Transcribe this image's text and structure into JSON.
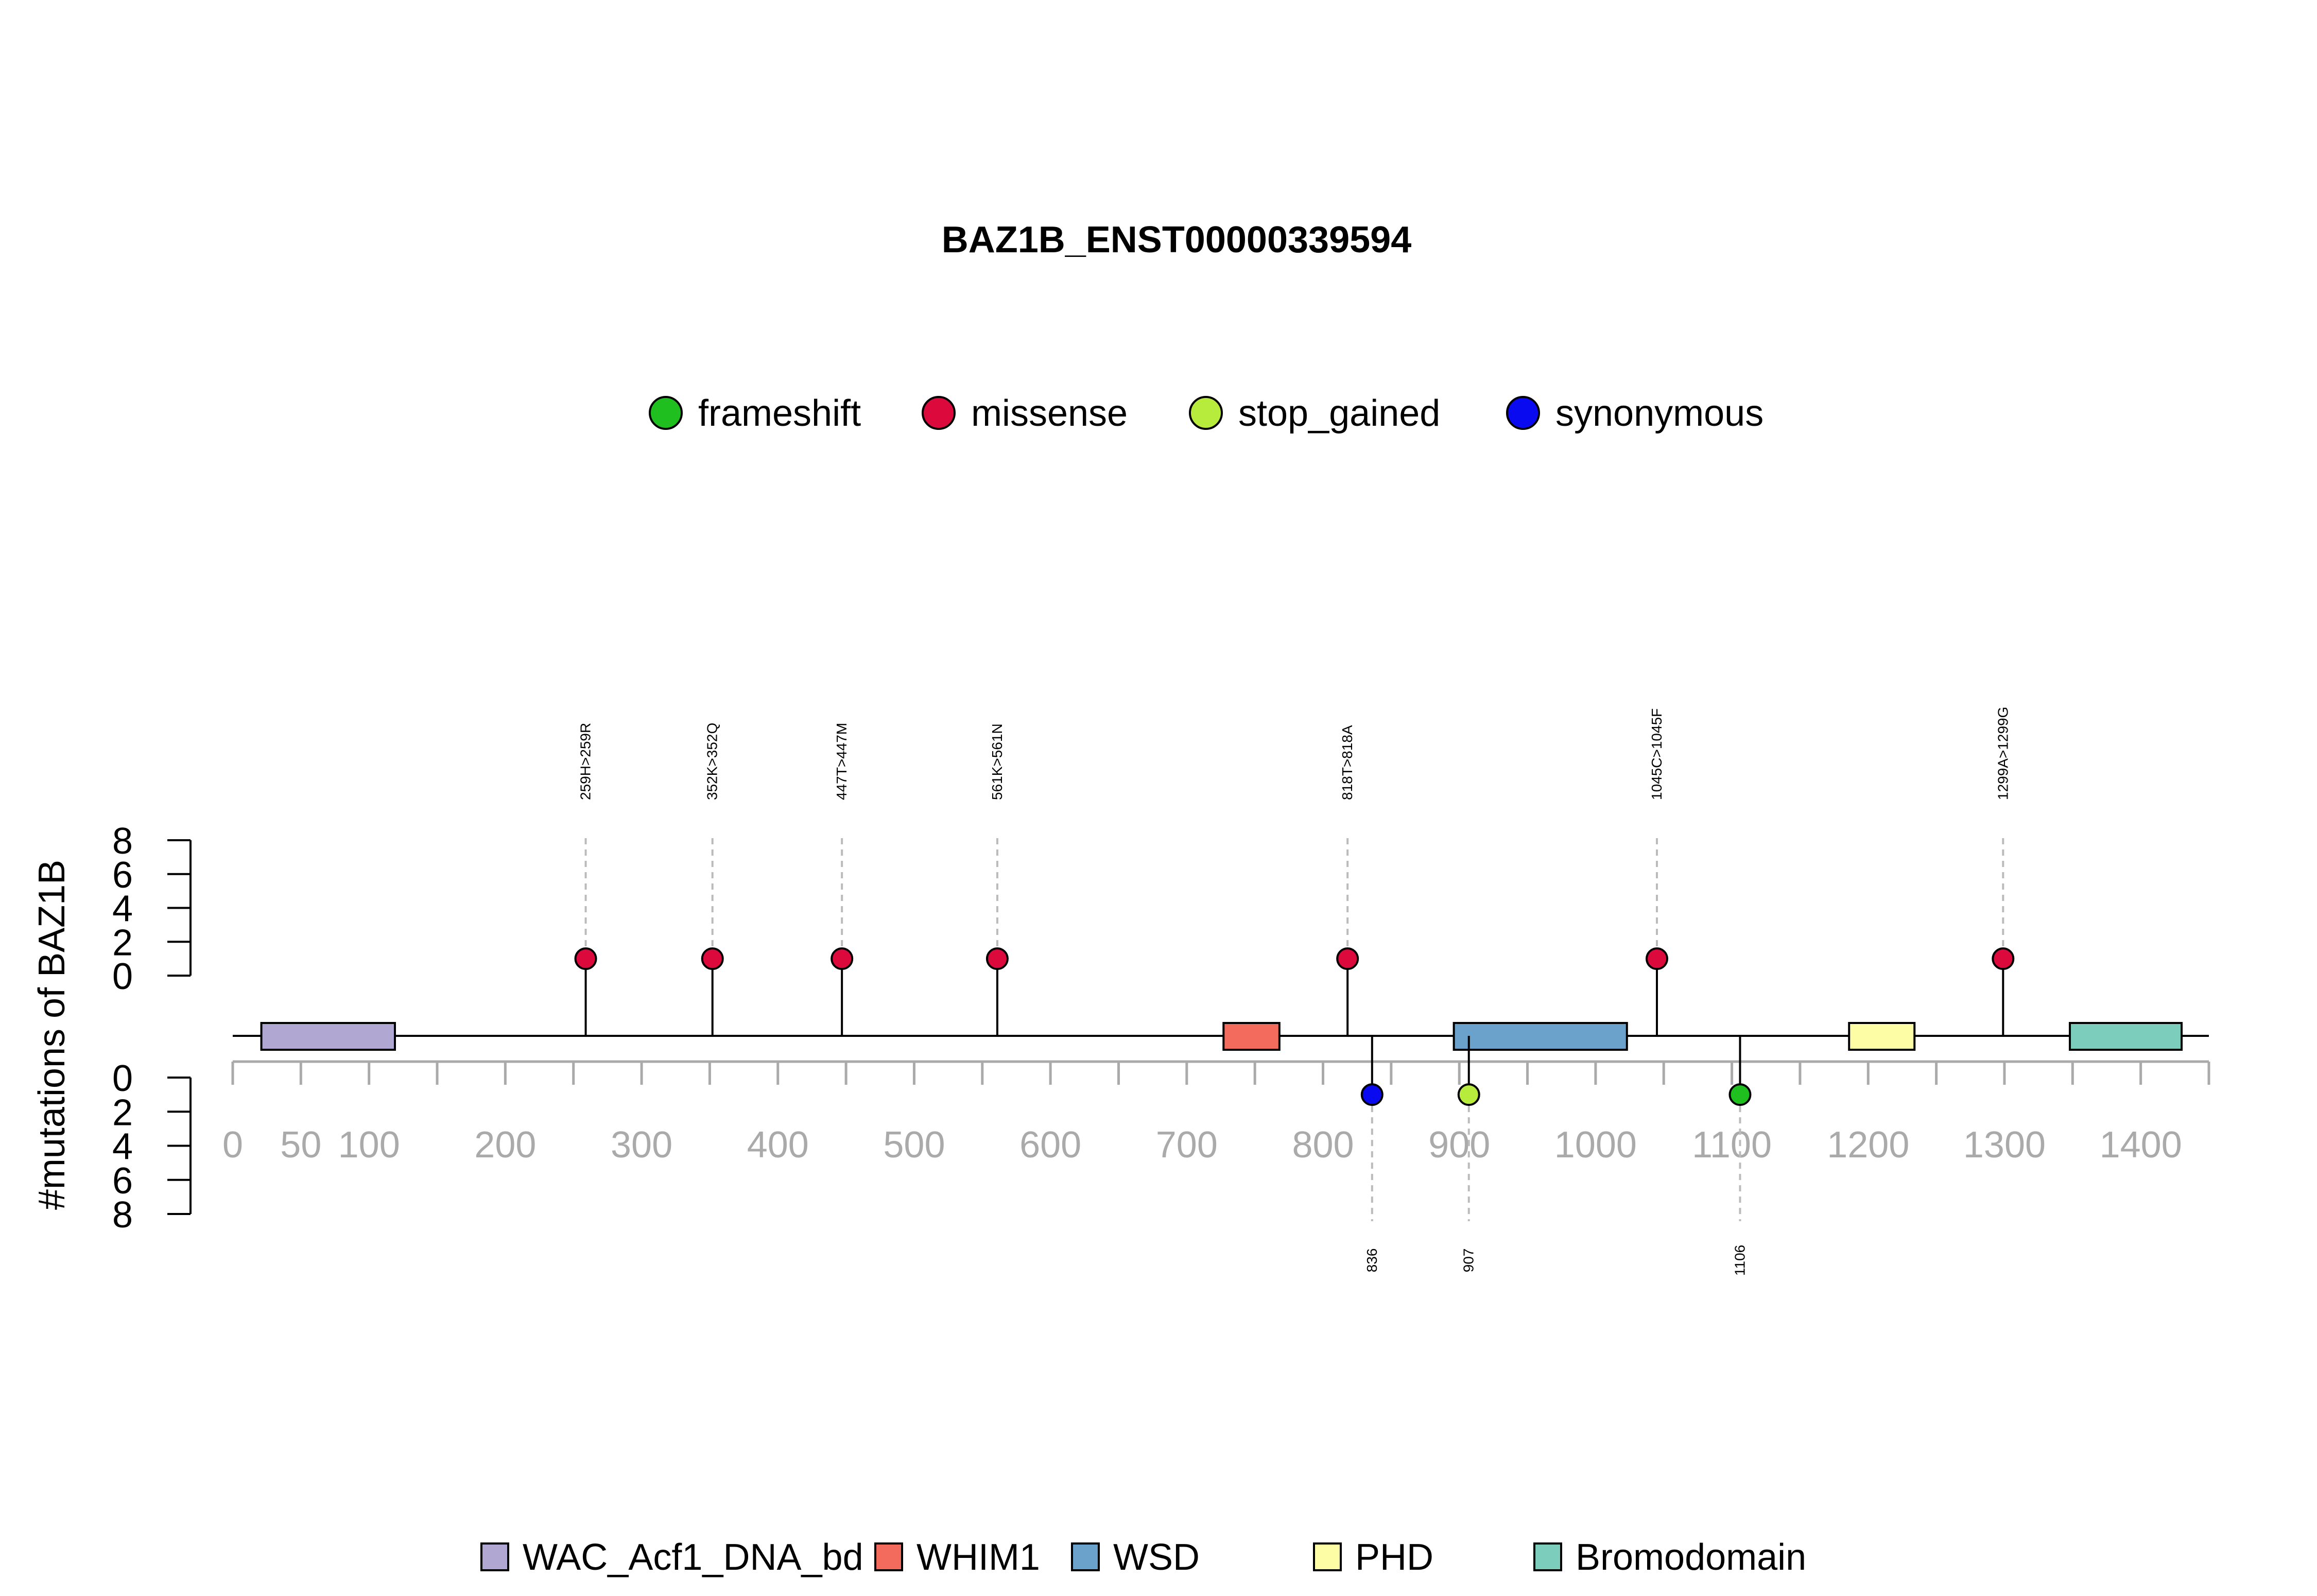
{
  "chart_data": {
    "type": "lollipop",
    "title": "BAZ1B_ENST00000339594",
    "ylabel": "#mutations of BAZ1B",
    "protein_length": 1450,
    "xlim": [
      0,
      1450
    ],
    "x_ticks": [
      0,
      50,
      100,
      150,
      200,
      250,
      300,
      350,
      400,
      450,
      500,
      550,
      600,
      650,
      700,
      750,
      800,
      850,
      900,
      950,
      1000,
      1050,
      1100,
      1150,
      1200,
      1250,
      1300,
      1350,
      1400,
      1450
    ],
    "x_tick_labels": [
      {
        "value": 0,
        "label": "0"
      },
      {
        "value": 50,
        "label": "50"
      },
      {
        "value": 100,
        "label": "100"
      },
      {
        "value": 200,
        "label": "200"
      },
      {
        "value": 300,
        "label": "300"
      },
      {
        "value": 400,
        "label": "400"
      },
      {
        "value": 500,
        "label": "500"
      },
      {
        "value": 600,
        "label": "600"
      },
      {
        "value": 700,
        "label": "700"
      },
      {
        "value": 800,
        "label": "800"
      },
      {
        "value": 900,
        "label": "900"
      },
      {
        "value": 1000,
        "label": "1000"
      },
      {
        "value": 1100,
        "label": "1100"
      },
      {
        "value": 1200,
        "label": "1200"
      },
      {
        "value": 1300,
        "label": "1300"
      },
      {
        "value": 1400,
        "label": "1400"
      }
    ],
    "y_top_ticks": [
      "0",
      "2",
      "4",
      "6",
      "8"
    ],
    "y_bottom_ticks": [
      "0",
      "2",
      "4",
      "6",
      "8"
    ],
    "ylim": [
      0,
      8
    ],
    "mutation_types": [
      {
        "name": "frameshift",
        "color": "#1fbf1f"
      },
      {
        "name": "missense",
        "color": "#dc0a3c"
      },
      {
        "name": "stop_gained",
        "color": "#b8ec3c"
      },
      {
        "name": "synonymous",
        "color": "#0a0af0"
      }
    ],
    "mutations_top": [
      {
        "pos": 259,
        "label": "259H>259R",
        "type": "missense",
        "count": 1
      },
      {
        "pos": 352,
        "label": "352K>352Q",
        "type": "missense",
        "count": 1
      },
      {
        "pos": 447,
        "label": "447T>447M",
        "type": "missense",
        "count": 1
      },
      {
        "pos": 561,
        "label": "561K>561N",
        "type": "missense",
        "count": 1
      },
      {
        "pos": 818,
        "label": "818T>818A",
        "type": "missense",
        "count": 1
      },
      {
        "pos": 1045,
        "label": "1045C>1045F",
        "type": "missense",
        "count": 1
      },
      {
        "pos": 1299,
        "label": "1299A>1299G",
        "type": "missense",
        "count": 1
      }
    ],
    "mutations_bottom": [
      {
        "pos": 836,
        "label": "836",
        "type": "synonymous",
        "count": 1
      },
      {
        "pos": 907,
        "label": "907",
        "type": "stop_gained",
        "count": 1
      },
      {
        "pos": 1106,
        "label": "1106",
        "type": "frameshift",
        "count": 1
      }
    ],
    "domains": [
      {
        "name": "WAC_Acf1_DNA_bd",
        "start": 21,
        "end": 119,
        "color": "#b0a8d2"
      },
      {
        "name": "WHIM1",
        "start": 727,
        "end": 768,
        "color": "#f36b5c"
      },
      {
        "name": "WSD",
        "start": 896,
        "end": 1023,
        "color": "#6aa2cb"
      },
      {
        "name": "PHD",
        "start": 1186,
        "end": 1234,
        "color": "#fdfda6"
      },
      {
        "name": "Bromodomain",
        "start": 1348,
        "end": 1430,
        "color": "#7ccdbb"
      }
    ]
  }
}
